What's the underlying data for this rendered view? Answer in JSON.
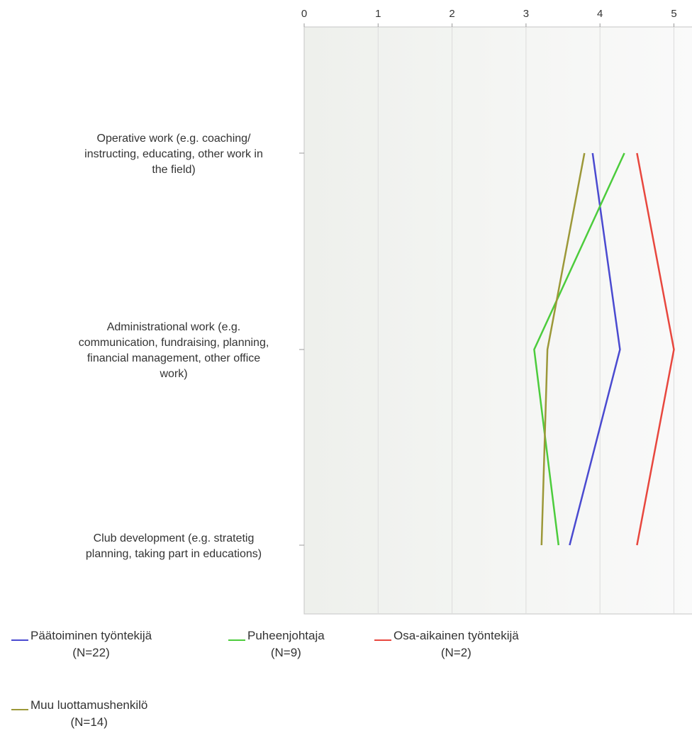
{
  "chart_data": {
    "type": "line",
    "orientation": "horizontal",
    "title": "",
    "xlabel": "",
    "ylabel": "",
    "xlim": [
      0,
      5
    ],
    "x_ticks": [
      "0",
      "1",
      "2",
      "3",
      "4",
      "5"
    ],
    "x_axis_position": "top",
    "grid": true,
    "legend_position": "bottom",
    "categories": [
      [
        "Operative work (e.g.  coaching/",
        "instructing, educating, other work in",
        "the field)"
      ],
      [
        "Administrational work (e.g.",
        "communication, fundraising, planning,",
        "financial management, other office",
        "work)"
      ],
      [
        "Club development (e.g. stratetig",
        "planning, taking part in educations)"
      ]
    ],
    "series": [
      {
        "name": "Päätoiminen työntekijä",
        "n_label": "(N=22)",
        "color": "#4a4ad0",
        "values": [
          3.9,
          4.27,
          3.59
        ]
      },
      {
        "name": "Puheenjohtaja",
        "n_label": "(N=9)",
        "color": "#4ccc3c",
        "values": [
          4.33,
          3.11,
          3.44
        ]
      },
      {
        "name": "Osa-aikainen työntekijä",
        "n_label": "(N=2)",
        "color": "#e8473e",
        "values": [
          4.5,
          5.0,
          4.5
        ]
      },
      {
        "name": "Muu luottamushenkilö",
        "n_label": "(N=14)",
        "color": "#9c9838",
        "values": [
          3.79,
          3.29,
          3.21
        ]
      }
    ]
  }
}
